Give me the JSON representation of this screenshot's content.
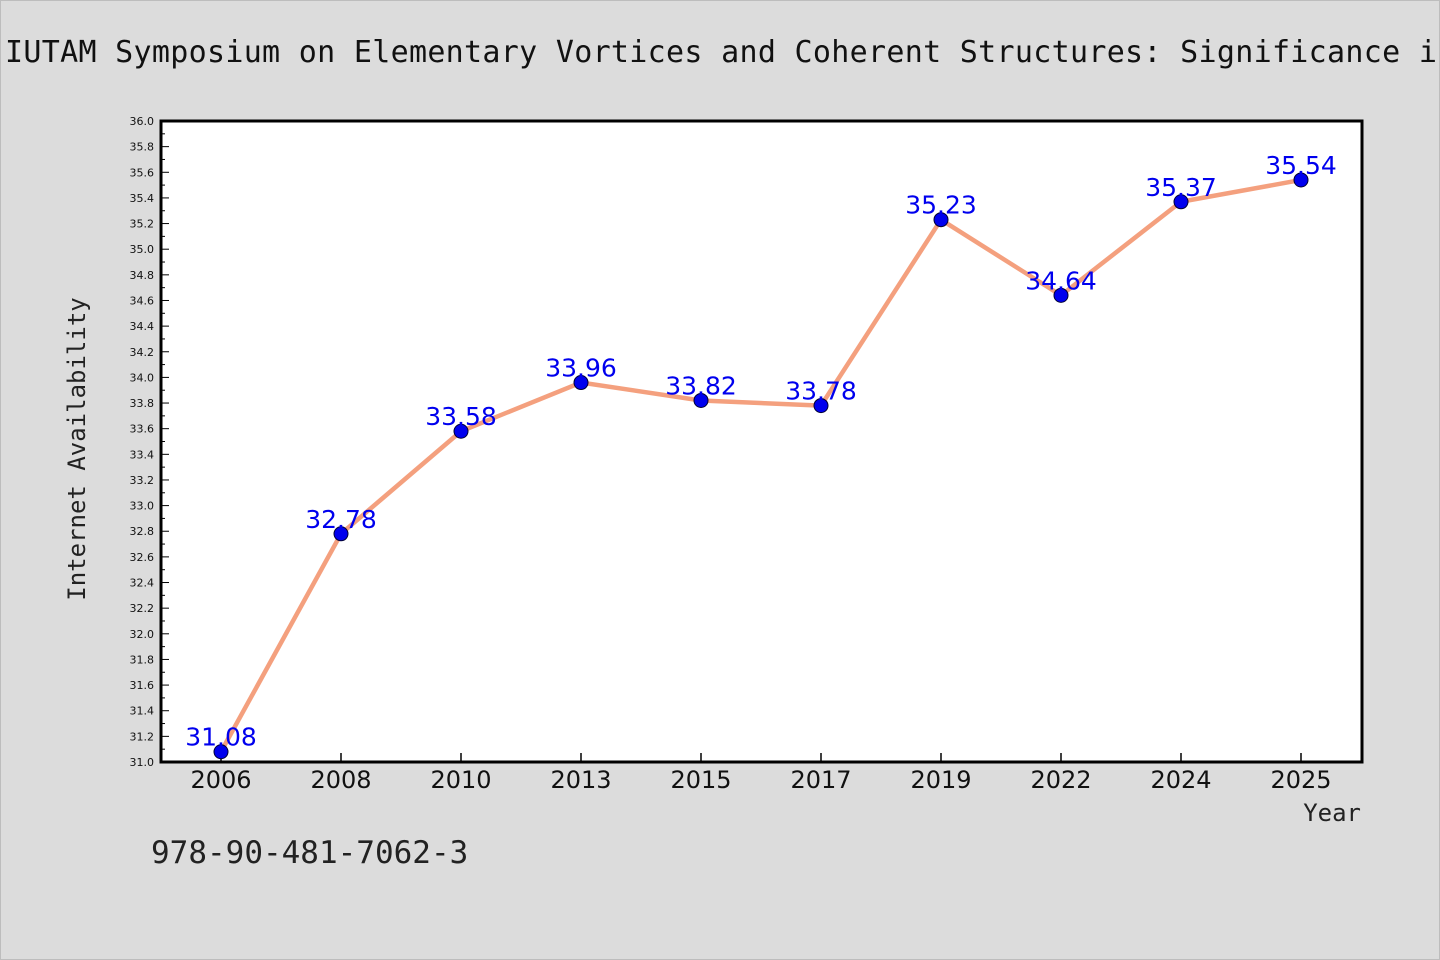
{
  "page": {
    "title": "IUTAM Symposium on Elementary Vortices and Coherent Structures: Significance in",
    "footer_code": "978-90-481-7062-3"
  },
  "chart_data": {
    "type": "line",
    "title": "IUTAM Symposium on Elementary Vortices and Coherent Structures: Significance in",
    "xlabel": "Year",
    "ylabel": "Internet Availability",
    "categories": [
      "2006",
      "2008",
      "2010",
      "2013",
      "2015",
      "2017",
      "2019",
      "2022",
      "2024",
      "2025"
    ],
    "series": [
      {
        "values": [
          31.08,
          32.78,
          33.58,
          33.96,
          33.82,
          33.78,
          35.23,
          34.64,
          35.37,
          35.54
        ],
        "data_labels": [
          "31.08",
          "32.78",
          "33.58",
          "33.96",
          "33.82",
          "33.78",
          "35.23",
          "34.64",
          "35.37",
          "35.54"
        ],
        "line_color": "#f4a07e",
        "marker_color": "#0000ee"
      }
    ],
    "ylim": [
      31.0,
      36.0
    ],
    "y_ticks": [
      "31.0",
      "31.2",
      "31.4",
      "31.6",
      "31.8",
      "32.0",
      "32.2",
      "32.4",
      "32.6",
      "32.8",
      "33.0",
      "33.2",
      "33.4",
      "33.6",
      "33.8",
      "34.0",
      "34.2",
      "34.4",
      "34.6",
      "34.8",
      "35.0",
      "35.2",
      "35.4",
      "35.6",
      "35.8",
      "36.0"
    ],
    "grid": false,
    "legend": "none",
    "colors": {
      "background": "#dcdcdc",
      "plot_background": "#ffffff"
    }
  }
}
